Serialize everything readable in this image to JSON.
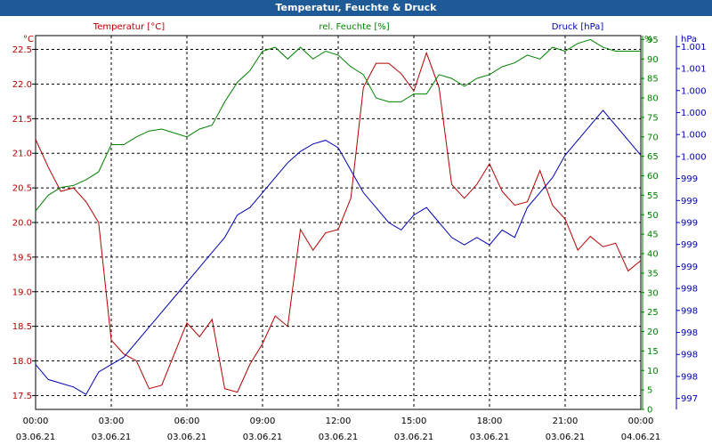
{
  "window": {
    "title": "Temperatur, Feuchte & Druck"
  },
  "colors": {
    "temperature": "#b40000",
    "humidity": "#008000",
    "pressure": "#0000b4",
    "title_bar": "#1e5a96",
    "grid": "#000000"
  },
  "chart_data": {
    "type": "line",
    "title": "Temperatur, Feuchte & Druck",
    "grid": true,
    "x_ticks": [
      {
        "time": "00:00",
        "date": "03.06.21"
      },
      {
        "time": "03:00",
        "date": "03.06.21"
      },
      {
        "time": "06:00",
        "date": "03.06.21"
      },
      {
        "time": "09:00",
        "date": "03.06.21"
      },
      {
        "time": "12:00",
        "date": "03.06.21"
      },
      {
        "time": "15:00",
        "date": "03.06.21"
      },
      {
        "time": "18:00",
        "date": "03.06.21"
      },
      {
        "time": "21:00",
        "date": "03.06.21"
      },
      {
        "time": "00:00",
        "date": "04.06.21"
      }
    ],
    "x_hours": [
      0,
      0.5,
      1,
      1.5,
      2,
      2.5,
      3,
      3.5,
      4,
      4.5,
      5,
      5.5,
      6,
      6.5,
      7,
      7.5,
      8,
      8.5,
      9,
      9.5,
      10,
      10.5,
      11,
      11.5,
      12,
      12.5,
      13,
      13.5,
      14,
      14.5,
      15,
      15.5,
      16,
      16.5,
      17,
      17.5,
      18,
      18.5,
      19,
      19.5,
      20,
      20.5,
      21,
      21.5,
      22,
      22.5,
      23,
      23.5,
      24
    ],
    "series": [
      {
        "name": "Temperatur [°C]",
        "axis": "left",
        "ylim": [
          17.3,
          22.7
        ],
        "ticks": [
          "17.5",
          "18.0",
          "18.5",
          "19.0",
          "19.5",
          "20.0",
          "20.5",
          "21.0",
          "21.5",
          "22.0",
          "22.5"
        ],
        "unit_label": "°C",
        "values": [
          21.2,
          20.8,
          20.45,
          20.5,
          20.3,
          20.0,
          18.3,
          18.1,
          18.0,
          17.6,
          17.65,
          18.1,
          18.55,
          18.35,
          18.6,
          17.6,
          17.55,
          17.95,
          18.25,
          18.65,
          18.5,
          19.9,
          19.6,
          19.85,
          19.9,
          20.35,
          21.95,
          22.3,
          22.3,
          22.15,
          21.9,
          22.45,
          21.95,
          20.55,
          20.35,
          20.55,
          20.85,
          20.45,
          20.25,
          20.3,
          20.75,
          20.25,
          20.05,
          19.6,
          19.8,
          19.65,
          19.7,
          19.3,
          19.45
        ]
      },
      {
        "name": "rel. Feuchte [%]",
        "axis": "right1",
        "ylim": [
          0,
          96
        ],
        "ticks": [
          "0",
          "5",
          "10",
          "15",
          "20",
          "25",
          "30",
          "35",
          "40",
          "45",
          "50",
          "55",
          "60",
          "65",
          "70",
          "75",
          "80",
          "85",
          "90",
          "95"
        ],
        "unit_label": "%",
        "values": [
          51,
          55,
          57,
          57.5,
          59,
          61,
          68,
          68,
          70,
          71.5,
          72,
          71,
          70,
          72,
          73,
          79,
          84,
          87,
          92,
          93,
          90,
          93,
          90,
          92,
          91,
          88,
          86,
          80,
          79,
          79,
          81,
          81,
          86,
          85,
          83,
          85,
          86,
          88,
          89,
          91,
          90,
          93,
          92,
          94,
          95,
          93,
          92,
          92,
          92
        ]
      },
      {
        "name": "Druck [hPa]",
        "axis": "right2",
        "ylim": [
          996.8,
          1001.8
        ],
        "ticks": [
          "997",
          "998",
          "998",
          "998",
          "998",
          "998",
          "999",
          "999",
          "999",
          "999",
          "999",
          "1.000",
          "1.000",
          "1.000",
          "1.000",
          "1.001",
          "1.001"
        ],
        "unit_label": "hPa",
        "values": [
          997.4,
          997.2,
          997.15,
          997.1,
          997.0,
          997.3,
          997.4,
          997.5,
          997.7,
          997.9,
          998.1,
          998.3,
          998.5,
          998.7,
          998.9,
          999.1,
          999.4,
          999.5,
          999.7,
          999.9,
          1000.1,
          1000.25,
          1000.35,
          1000.4,
          1000.3,
          1000.0,
          999.7,
          999.5,
          999.3,
          999.2,
          999.4,
          999.5,
          999.3,
          999.1,
          999.0,
          999.1,
          999.0,
          999.2,
          999.1,
          999.5,
          999.7,
          999.9,
          1000.2,
          1000.4,
          1000.6,
          1000.8,
          1000.6,
          1000.4,
          1000.2
        ]
      }
    ]
  }
}
